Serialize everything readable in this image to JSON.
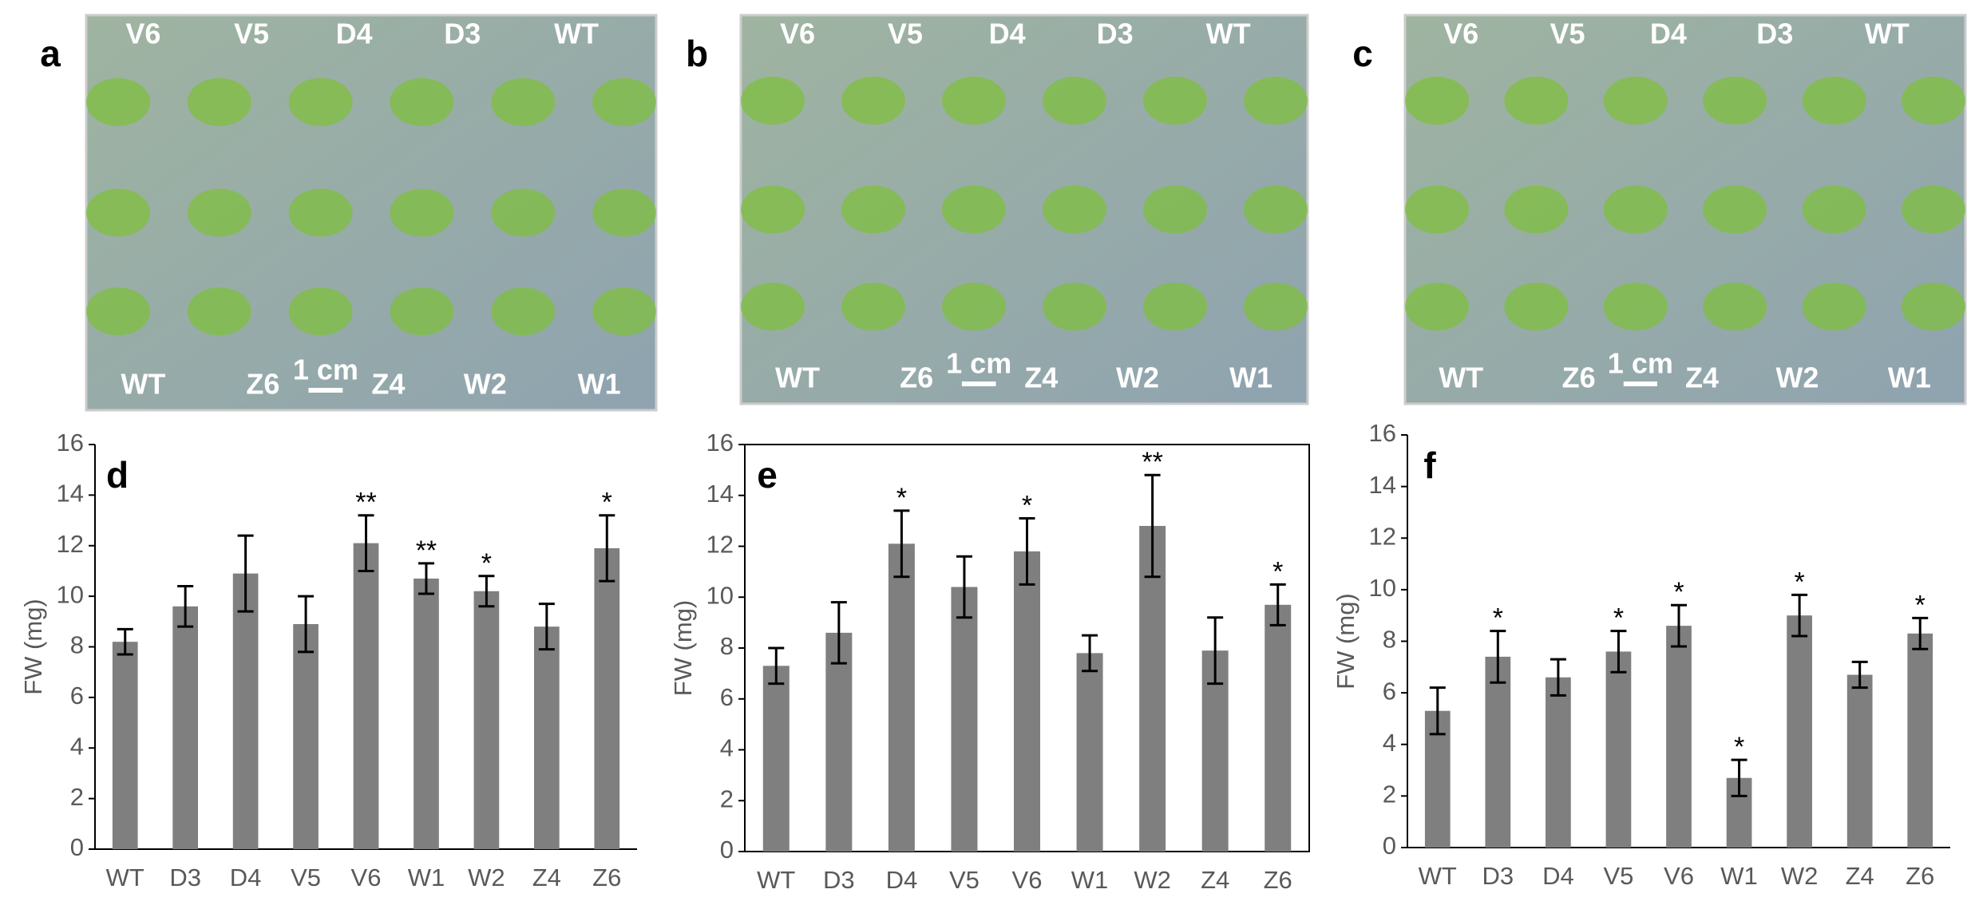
{
  "photos": [
    {
      "letter": "a",
      "top_labels": [
        "V6",
        "V5",
        "D4",
        "D3",
        "WT"
      ],
      "bottom_labels": [
        "WT",
        "Z6",
        "Z4",
        "W2",
        "W1"
      ],
      "scale": "1 cm"
    },
    {
      "letter": "b",
      "top_labels": [
        "V6",
        "V5",
        "D4",
        "D3",
        "WT"
      ],
      "bottom_labels": [
        "WT",
        "Z6",
        "Z4",
        "W2",
        "W1"
      ],
      "scale": "1 cm"
    },
    {
      "letter": "c",
      "top_labels": [
        "V6",
        "V5",
        "D4",
        "D3",
        "WT"
      ],
      "bottom_labels": [
        "WT",
        "Z6",
        "Z4",
        "W2",
        "W1"
      ],
      "scale": "1 cm"
    }
  ],
  "chart_data": [
    {
      "type": "bar",
      "title": "d",
      "y_label": "FW (mg)",
      "color": "#7f7f7f",
      "frame": false,
      "categories": [
        "WT",
        "D3",
        "D4",
        "V5",
        "V6",
        "W1",
        "W2",
        "Z4",
        "Z6"
      ],
      "values": [
        8.2,
        9.6,
        10.9,
        8.9,
        12.1,
        10.7,
        10.2,
        8.8,
        11.9
      ],
      "errors": [
        0.5,
        0.8,
        1.5,
        1.1,
        1.1,
        0.6,
        0.6,
        0.9,
        1.3
      ],
      "significance": [
        null,
        null,
        null,
        null,
        "**",
        "**",
        "*",
        null,
        "*"
      ],
      "ylim": [
        0,
        16
      ],
      "yticks": [
        0,
        2,
        4,
        6,
        8,
        10,
        12,
        14,
        16
      ]
    },
    {
      "type": "bar",
      "title": "e",
      "y_label": "FW (mg)",
      "color": "#7f7f7f",
      "frame": true,
      "categories": [
        "WT",
        "D3",
        "D4",
        "V5",
        "V6",
        "W1",
        "W2",
        "Z4",
        "Z6"
      ],
      "values": [
        7.3,
        8.6,
        12.1,
        10.4,
        11.8,
        7.8,
        12.8,
        7.9,
        9.7
      ],
      "errors": [
        0.7,
        1.2,
        1.3,
        1.2,
        1.3,
        0.7,
        2.0,
        1.3,
        0.8
      ],
      "significance": [
        null,
        null,
        "*",
        null,
        "*",
        null,
        "**",
        null,
        "*"
      ],
      "ylim": [
        0,
        16
      ],
      "yticks": [
        0,
        2,
        4,
        6,
        8,
        10,
        12,
        14,
        16
      ]
    },
    {
      "type": "bar",
      "title": "f",
      "y_label": "FW (mg)",
      "color": "#7f7f7f",
      "frame": false,
      "categories": [
        "WT",
        "D3",
        "D4",
        "V5",
        "V6",
        "W1",
        "W2",
        "Z4",
        "Z6"
      ],
      "values": [
        5.3,
        7.4,
        6.6,
        7.6,
        8.6,
        2.7,
        9.0,
        6.7,
        8.3
      ],
      "errors": [
        0.9,
        1.0,
        0.7,
        0.8,
        0.8,
        0.7,
        0.8,
        0.5,
        0.6
      ],
      "significance": [
        null,
        "*",
        null,
        "*",
        "*",
        "*",
        "*",
        null,
        "*"
      ],
      "ylim": [
        0,
        16
      ],
      "yticks": [
        0,
        2,
        4,
        6,
        8,
        10,
        12,
        14,
        16
      ]
    }
  ]
}
